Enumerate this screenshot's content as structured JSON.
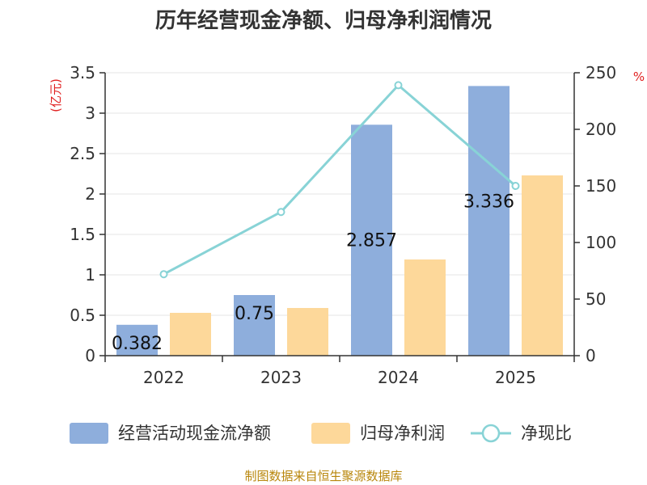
{
  "title": "历年经营现金净额、归母净利润情况",
  "source": "制图数据来自恒生聚源数据库",
  "colors": {
    "cashflow": "#8eaedc",
    "netprofit": "#fdd89a",
    "ratio": "#88d3d6",
    "axis": "#333333",
    "unit": "#e02020",
    "grid": "#e6e6e6",
    "source": "#b8860b"
  },
  "chart_data": {
    "type": "bar",
    "categories": [
      "2022",
      "2023",
      "2024",
      "2025"
    ],
    "series": [
      {
        "name": "经营活动现金流净额",
        "type": "bar",
        "axis": "left",
        "values": [
          0.382,
          0.75,
          2.857,
          3.336
        ],
        "data_labels": [
          "0.382",
          "0.75",
          "2.857",
          "3.336"
        ]
      },
      {
        "name": "归母净利润",
        "type": "bar",
        "axis": "left",
        "values": [
          0.53,
          0.59,
          1.19,
          2.23
        ]
      },
      {
        "name": "净现比",
        "type": "line",
        "axis": "right",
        "values": [
          72,
          127,
          239,
          150
        ]
      }
    ],
    "y_left": {
      "unit": "(亿元)",
      "min": 0,
      "max": 3.5,
      "ticks": [
        "0",
        "0.5",
        "1",
        "1.5",
        "2",
        "2.5",
        "3",
        "3.5"
      ]
    },
    "y_right": {
      "unit": "%",
      "min": 0,
      "max": 250,
      "ticks": [
        "0",
        "50",
        "100",
        "150",
        "200",
        "250"
      ]
    },
    "grid": true,
    "legend_position": "bottom"
  }
}
